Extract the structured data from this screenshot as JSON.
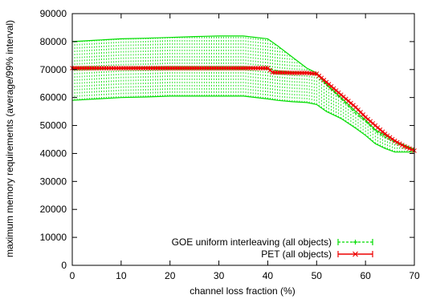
{
  "chart_data": {
    "type": "line",
    "xlabel": "channel loss fraction (%)",
    "ylabel": "maximum memory requirements (average/99% interval)",
    "xlim": [
      0,
      70
    ],
    "ylim": [
      0,
      90000
    ],
    "xticks": [
      0,
      10,
      20,
      30,
      40,
      50,
      60,
      70
    ],
    "yticks": [
      0,
      10000,
      20000,
      30000,
      40000,
      50000,
      60000,
      70000,
      80000,
      90000
    ],
    "grid": false,
    "legend_position": "bottom-right",
    "series": [
      {
        "name": "GOE uniform interleaving (all objects)",
        "color": "#00dd00",
        "style": "dashed with error bars (+ markers)",
        "x": [
          0,
          5,
          10,
          15,
          20,
          25,
          30,
          35,
          40,
          42,
          45,
          48,
          50,
          52,
          55,
          58,
          60,
          62,
          64,
          66,
          68,
          70
        ],
        "y": [
          70200,
          70300,
          70300,
          70400,
          70400,
          70500,
          70500,
          70500,
          70500,
          69500,
          68800,
          68700,
          68500,
          64500,
          59500,
          54300,
          51500,
          48000,
          45800,
          44000,
          42500,
          41000
        ],
        "low": [
          59000,
          59500,
          60000,
          60200,
          60500,
          60500,
          60500,
          60500,
          59500,
          59000,
          58500,
          58200,
          57500,
          55000,
          52500,
          49000,
          46500,
          43500,
          41800,
          40500,
          40500,
          40500
        ],
        "high": [
          80000,
          80500,
          81000,
          81200,
          81500,
          81800,
          82000,
          82000,
          81000,
          78500,
          74500,
          70500,
          68800,
          64800,
          60000,
          55000,
          52000,
          48500,
          46500,
          44500,
          43000,
          41500
        ]
      },
      {
        "name": "PET (all objects)",
        "color": "#ee0000",
        "style": "solid with x markers",
        "x": [
          0,
          5,
          10,
          15,
          20,
          25,
          30,
          35,
          40,
          41,
          45,
          48,
          50,
          52,
          55,
          58,
          60,
          62,
          64,
          66,
          68,
          70
        ],
        "y": [
          70500,
          70500,
          70500,
          70500,
          70500,
          70500,
          70500,
          70500,
          70500,
          69000,
          68800,
          68800,
          68500,
          65500,
          61000,
          56500,
          53000,
          50000,
          47000,
          44500,
          42500,
          41000
        ]
      }
    ]
  }
}
